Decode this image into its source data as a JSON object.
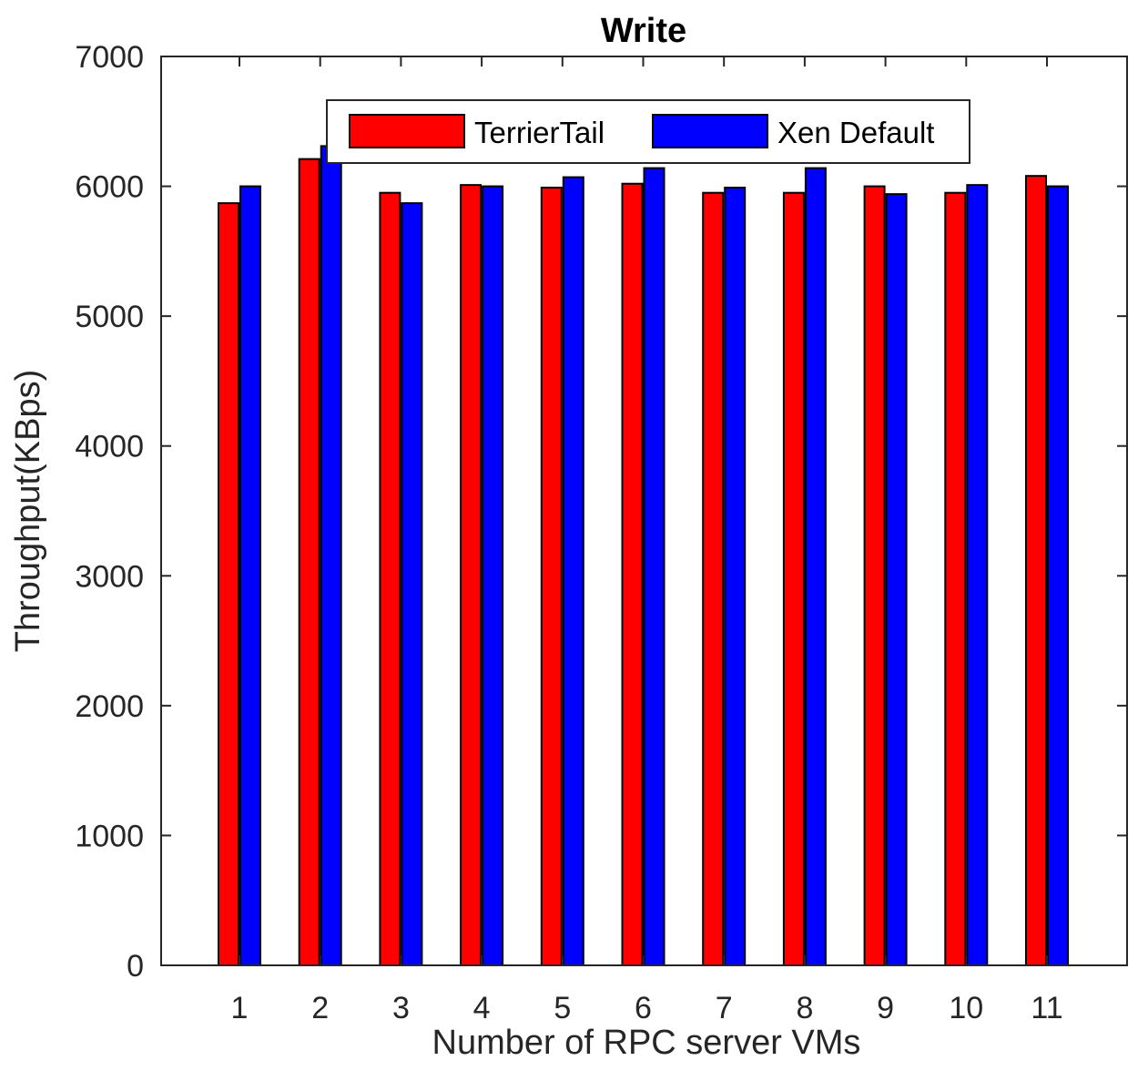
{
  "chart_data": {
    "type": "bar",
    "title": "Write",
    "xlabel": "Number of RPC server VMs",
    "ylabel": "Throughput(KBps)",
    "categories": [
      "1",
      "2",
      "3",
      "4",
      "5",
      "6",
      "7",
      "8",
      "9",
      "10",
      "11"
    ],
    "ylim": [
      0,
      7000
    ],
    "yticks": [
      "0",
      "1000",
      "2000",
      "3000",
      "4000",
      "5000",
      "6000",
      "7000"
    ],
    "grid": false,
    "legend_position": "top-center",
    "series": [
      {
        "name": "TerrierTail",
        "color": "#ff0000",
        "values": [
          5870,
          6210,
          5950,
          6010,
          5990,
          6020,
          5950,
          5950,
          6000,
          5950,
          6080
        ]
      },
      {
        "name": "Xen Default",
        "color": "#0000ff",
        "values": [
          6000,
          6310,
          5870,
          6000,
          6070,
          6140,
          5990,
          6140,
          5940,
          6010,
          6000
        ]
      }
    ]
  }
}
